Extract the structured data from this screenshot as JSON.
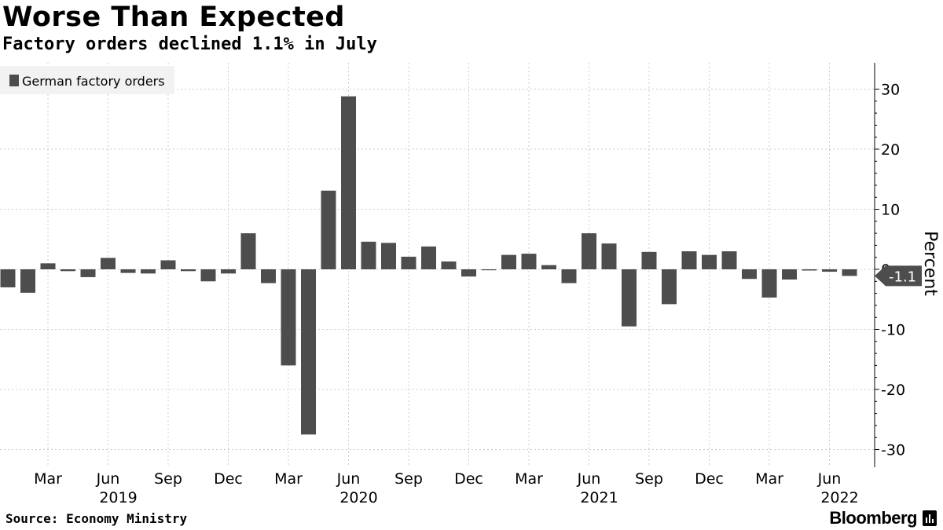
{
  "header": {
    "title": "Worse Than Expected",
    "subtitle": "Factory orders declined 1.1% in July"
  },
  "footer": {
    "source": "Source: Economy Ministry",
    "brand": "Bloomberg"
  },
  "colors": {
    "bar": "#4d4d4d",
    "grid": "#cccccc",
    "legend_bg": "#f2f2f2"
  },
  "chart_data": {
    "type": "bar",
    "legend": "German factory orders",
    "legend_position": "top-left",
    "ylabel": "Percent",
    "ylim": [
      -32,
      34
    ],
    "yticks": [
      30,
      20,
      10,
      0,
      -10,
      -20,
      -30
    ],
    "ytick_labels": [
      "30",
      "20",
      "10",
      "0",
      "-10",
      "-20",
      "-30"
    ],
    "grid": true,
    "y_axis_position": "right",
    "last_value_label": "-1.1",
    "categories": [
      "2019-01",
      "2019-02",
      "2019-03",
      "2019-04",
      "2019-05",
      "2019-06",
      "2019-07",
      "2019-08",
      "2019-09",
      "2019-10",
      "2019-11",
      "2019-12",
      "2020-01",
      "2020-02",
      "2020-03",
      "2020-04",
      "2020-05",
      "2020-06",
      "2020-07",
      "2020-08",
      "2020-09",
      "2020-10",
      "2020-11",
      "2020-12",
      "2021-01",
      "2021-02",
      "2021-03",
      "2021-04",
      "2021-05",
      "2021-06",
      "2021-07",
      "2021-08",
      "2021-09",
      "2021-10",
      "2021-11",
      "2021-12",
      "2022-01",
      "2022-02",
      "2022-03",
      "2022-04",
      "2022-05",
      "2022-06",
      "2022-07"
    ],
    "values": [
      -3.0,
      -3.9,
      1.0,
      -0.3,
      -1.3,
      1.9,
      -0.6,
      -0.7,
      1.5,
      -0.3,
      -2.0,
      -0.7,
      6.0,
      -2.3,
      -16.0,
      -27.5,
      13.1,
      28.8,
      4.6,
      4.4,
      2.1,
      3.8,
      1.3,
      -1.2,
      -0.1,
      2.4,
      2.6,
      0.7,
      -2.3,
      6.0,
      4.3,
      -9.5,
      2.9,
      -5.8,
      3.0,
      2.4,
      3.0,
      -1.6,
      -4.7,
      -1.7,
      -0.2,
      -0.4,
      -1.1
    ],
    "x_month_ticks": [
      {
        "month": "2019-03",
        "label": "Mar"
      },
      {
        "month": "2019-06",
        "label": "Jun"
      },
      {
        "month": "2019-09",
        "label": "Sep"
      },
      {
        "month": "2019-12",
        "label": "Dec"
      },
      {
        "month": "2020-03",
        "label": "Mar"
      },
      {
        "month": "2020-06",
        "label": "Jun"
      },
      {
        "month": "2020-09",
        "label": "Sep"
      },
      {
        "month": "2020-12",
        "label": "Dec"
      },
      {
        "month": "2021-03",
        "label": "Mar"
      },
      {
        "month": "2021-06",
        "label": "Jun"
      },
      {
        "month": "2021-09",
        "label": "Sep"
      },
      {
        "month": "2021-12",
        "label": "Dec"
      },
      {
        "month": "2022-03",
        "label": "Mar"
      },
      {
        "month": "2022-06",
        "label": "Jun"
      }
    ],
    "x_year_labels": [
      {
        "month": "2019-06",
        "label": "2019"
      },
      {
        "month": "2020-06",
        "label": "2020"
      },
      {
        "month": "2021-06",
        "label": "2021"
      },
      {
        "month": "2022-06",
        "label": "2022"
      }
    ]
  }
}
